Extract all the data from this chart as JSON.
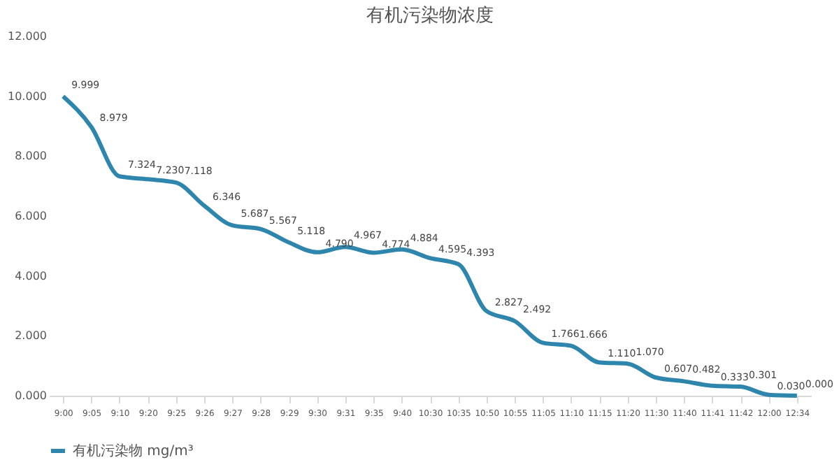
{
  "chart_data": {
    "type": "line",
    "title": "有机污染物浓度",
    "categories": [
      "9:00",
      "9:05",
      "9:10",
      "9:20",
      "9:25",
      "9:26",
      "9:27",
      "9:28",
      "9:29",
      "9:30",
      "9:31",
      "9:35",
      "9:40",
      "10:30",
      "10:35",
      "10:50",
      "10:55",
      "11:05",
      "11:10",
      "11:15",
      "11:20",
      "11:30",
      "11:40",
      "11:41",
      "11:42",
      "12:00",
      "12:34"
    ],
    "series": [
      {
        "name": "有机污染物 mg/m³",
        "color": "#2f86ad",
        "values": [
          9.999,
          8.979,
          7.324,
          7.23,
          7.118,
          6.346,
          5.687,
          5.567,
          5.118,
          4.79,
          4.967,
          4.774,
          4.884,
          4.595,
          4.393,
          2.827,
          2.492,
          1.766,
          1.666,
          1.11,
          1.07,
          0.607,
          0.482,
          0.333,
          0.301,
          0.03,
          0.0
        ]
      }
    ],
    "ylim": [
      0,
      12
    ],
    "yticks": [
      {
        "value": 0,
        "label": "0.000"
      },
      {
        "value": 2,
        "label": "2.000"
      },
      {
        "value": 4,
        "label": "4.000"
      },
      {
        "value": 6,
        "label": "6.000"
      },
      {
        "value": 8,
        "label": "8.000"
      },
      {
        "value": 10,
        "label": "10.000"
      },
      {
        "value": 12,
        "label": "12.000"
      }
    ],
    "value_labels": [
      "9.999",
      "8.979",
      "7.324",
      "7.230",
      "7.118",
      "6.346",
      "5.687",
      "5.567",
      "5.118",
      "4.790",
      "4.967",
      "4.774",
      "4.884",
      "4.595",
      "4.393",
      "2.827",
      "2.492",
      "1.766",
      "1.666",
      "1.110",
      "1.070",
      "0.607",
      "0.482",
      "0.333",
      "0.301",
      "0.030",
      "0.000"
    ],
    "grid": false,
    "legend": "bottom",
    "marker": "none",
    "line_style": "solid"
  }
}
